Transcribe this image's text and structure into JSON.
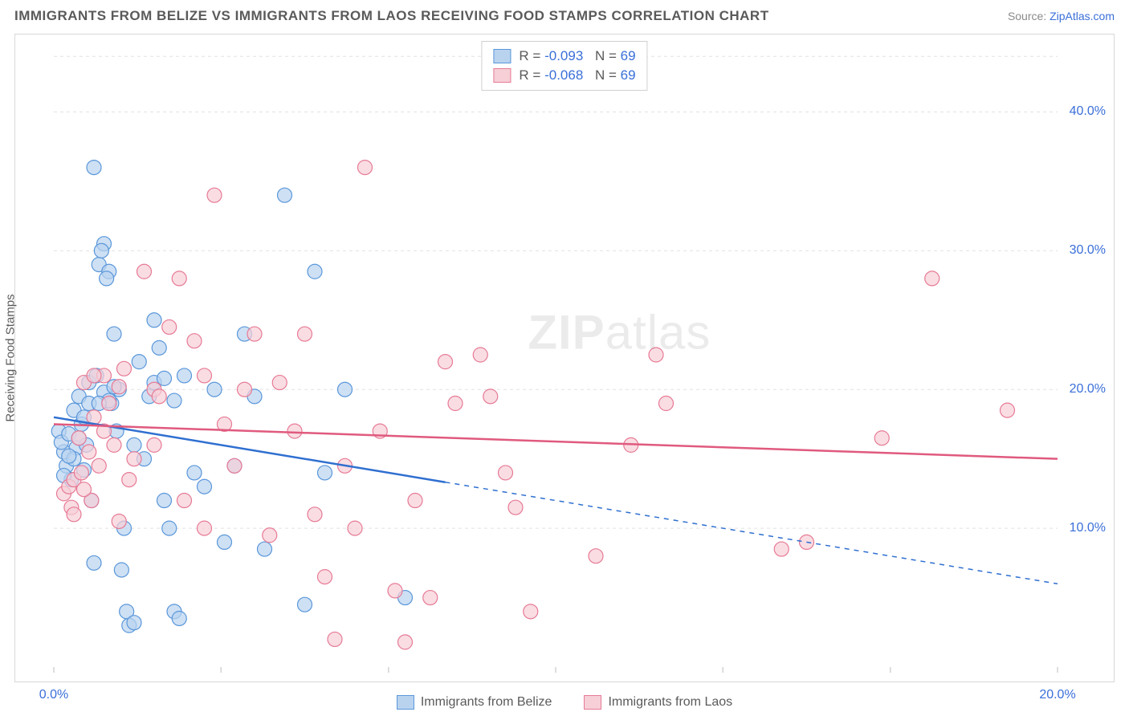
{
  "header": {
    "title": "IMMIGRANTS FROM BELIZE VS IMMIGRANTS FROM LAOS RECEIVING FOOD STAMPS CORRELATION CHART",
    "source_prefix": "Source: ",
    "source_link": "ZipAtlas.com"
  },
  "ylabel": "Receiving Food Stamps",
  "watermark": {
    "bold": "ZIP",
    "rest": "atlas"
  },
  "chart": {
    "type": "scatter",
    "background_color": "#ffffff",
    "grid_color": "#e2e2e2",
    "xlim": [
      0,
      20
    ],
    "ylim": [
      0,
      45
    ],
    "x_ticks": [
      0,
      20
    ],
    "x_tick_labels": [
      "0.0%",
      "20.0%"
    ],
    "x_minor_ticks": [
      3.33,
      6.67,
      10.0,
      13.33,
      16.67
    ],
    "y_ticks": [
      10,
      20,
      30,
      40
    ],
    "y_tick_labels": [
      "10.0%",
      "20.0%",
      "30.0%",
      "40.0%"
    ],
    "marker_radius": 9,
    "marker_stroke_width": 1.2,
    "trend_line_width": 2.5,
    "series": [
      {
        "name": "Immigrants from Belize",
        "fill": "#b9d3ef",
        "stroke": "#5a97da",
        "line_color": "#2f6fd0",
        "R": "-0.093",
        "N": "69",
        "trend": {
          "y_at_xmin": 18.0,
          "y_at_xmax": 6.0,
          "solid_until_x": 7.8
        },
        "points": [
          [
            0.1,
            17
          ],
          [
            0.2,
            15.5
          ],
          [
            0.15,
            16.2
          ],
          [
            0.3,
            16.8
          ],
          [
            0.25,
            14.5
          ],
          [
            0.4,
            18.5
          ],
          [
            0.35,
            13.5
          ],
          [
            0.5,
            19.5
          ],
          [
            0.45,
            15.8
          ],
          [
            0.55,
            17.5
          ],
          [
            0.6,
            14.2
          ],
          [
            0.7,
            20.5
          ],
          [
            0.65,
            16
          ],
          [
            0.8,
            36
          ],
          [
            0.75,
            12
          ],
          [
            0.9,
            29
          ],
          [
            0.85,
            21
          ],
          [
            1.0,
            30.5
          ],
          [
            0.95,
            30
          ],
          [
            1.1,
            28.5
          ],
          [
            1.05,
            28
          ],
          [
            1.2,
            24
          ],
          [
            1.15,
            19
          ],
          [
            1.3,
            20
          ],
          [
            1.25,
            17
          ],
          [
            1.4,
            10
          ],
          [
            1.35,
            7
          ],
          [
            1.5,
            3
          ],
          [
            1.45,
            4
          ],
          [
            1.6,
            16
          ],
          [
            1.7,
            22
          ],
          [
            1.8,
            15
          ],
          [
            1.9,
            19.5
          ],
          [
            2.0,
            25
          ],
          [
            2.1,
            23
          ],
          [
            2.2,
            12
          ],
          [
            2.3,
            10
          ],
          [
            2.4,
            4
          ],
          [
            2.5,
            3.5
          ],
          [
            2.0,
            20.5
          ],
          [
            0.5,
            16.5
          ],
          [
            0.4,
            15
          ],
          [
            0.6,
            18
          ],
          [
            0.7,
            19
          ],
          [
            0.3,
            15.2
          ],
          [
            1.0,
            19.8
          ],
          [
            1.1,
            19.2
          ],
          [
            1.2,
            20.2
          ],
          [
            0.8,
            7.5
          ],
          [
            0.9,
            19
          ],
          [
            2.6,
            21
          ],
          [
            2.8,
            14
          ],
          [
            3.0,
            13
          ],
          [
            3.2,
            20
          ],
          [
            3.4,
            9
          ],
          [
            3.6,
            14.5
          ],
          [
            3.8,
            24
          ],
          [
            4.2,
            8.5
          ],
          [
            4.6,
            34
          ],
          [
            5.0,
            4.5
          ],
          [
            5.2,
            28.5
          ],
          [
            5.4,
            14
          ],
          [
            5.8,
            20
          ],
          [
            7.0,
            5
          ],
          [
            4.0,
            19.5
          ],
          [
            2.2,
            20.8
          ],
          [
            2.4,
            19.2
          ],
          [
            1.6,
            3.2
          ],
          [
            0.2,
            13.8
          ]
        ]
      },
      {
        "name": "Immigrants from Laos",
        "fill": "#f6cfd7",
        "stroke": "#e77a95",
        "line_color": "#e05a7e",
        "R": "-0.068",
        "N": "69",
        "trend": {
          "y_at_xmin": 17.5,
          "y_at_xmax": 15.0,
          "solid_until_x": 20
        },
        "points": [
          [
            0.2,
            12.5
          ],
          [
            0.3,
            13
          ],
          [
            0.35,
            11.5
          ],
          [
            0.4,
            13.5
          ],
          [
            0.5,
            16.5
          ],
          [
            0.55,
            14
          ],
          [
            0.6,
            20.5
          ],
          [
            0.7,
            15.5
          ],
          [
            0.75,
            12
          ],
          [
            0.8,
            18
          ],
          [
            0.9,
            14.5
          ],
          [
            1.0,
            17
          ],
          [
            1.1,
            19
          ],
          [
            1.2,
            16
          ],
          [
            1.3,
            10.5
          ],
          [
            1.4,
            21.5
          ],
          [
            1.5,
            13.5
          ],
          [
            1.6,
            15
          ],
          [
            1.8,
            28.5
          ],
          [
            2.0,
            20
          ],
          [
            2.1,
            19.5
          ],
          [
            2.3,
            24.5
          ],
          [
            2.5,
            28
          ],
          [
            2.6,
            12
          ],
          [
            2.8,
            23.5
          ],
          [
            3.0,
            10
          ],
          [
            3.2,
            34
          ],
          [
            3.4,
            17.5
          ],
          [
            3.6,
            14.5
          ],
          [
            3.8,
            20
          ],
          [
            4.0,
            24
          ],
          [
            4.3,
            9.5
          ],
          [
            4.5,
            20.5
          ],
          [
            5.0,
            24
          ],
          [
            5.2,
            11
          ],
          [
            5.4,
            6.5
          ],
          [
            5.6,
            2
          ],
          [
            5.8,
            14.5
          ],
          [
            6.2,
            36
          ],
          [
            6.5,
            17
          ],
          [
            6.8,
            5.5
          ],
          [
            7.0,
            1.8
          ],
          [
            7.2,
            12
          ],
          [
            7.5,
            5
          ],
          [
            7.8,
            22
          ],
          [
            8.0,
            19
          ],
          [
            8.5,
            22.5
          ],
          [
            8.7,
            19.5
          ],
          [
            9.0,
            14
          ],
          [
            9.2,
            11.5
          ],
          [
            9.5,
            4
          ],
          [
            10.8,
            8
          ],
          [
            11.5,
            16
          ],
          [
            12.0,
            22.5
          ],
          [
            12.2,
            19
          ],
          [
            14.5,
            8.5
          ],
          [
            15.0,
            9
          ],
          [
            16.5,
            16.5
          ],
          [
            17.5,
            28
          ],
          [
            19.0,
            18.5
          ],
          [
            1.0,
            21
          ],
          [
            1.3,
            20.2
          ],
          [
            0.4,
            11
          ],
          [
            0.6,
            12.8
          ],
          [
            0.8,
            21
          ],
          [
            4.8,
            17
          ],
          [
            3.0,
            21
          ],
          [
            2.0,
            16
          ],
          [
            6.0,
            10
          ]
        ]
      }
    ]
  },
  "bottom_legend": [
    {
      "label": "Immigrants from Belize",
      "fill": "#b9d3ef",
      "stroke": "#5a97da"
    },
    {
      "label": "Immigrants from Laos",
      "fill": "#f6cfd7",
      "stroke": "#e77a95"
    }
  ]
}
